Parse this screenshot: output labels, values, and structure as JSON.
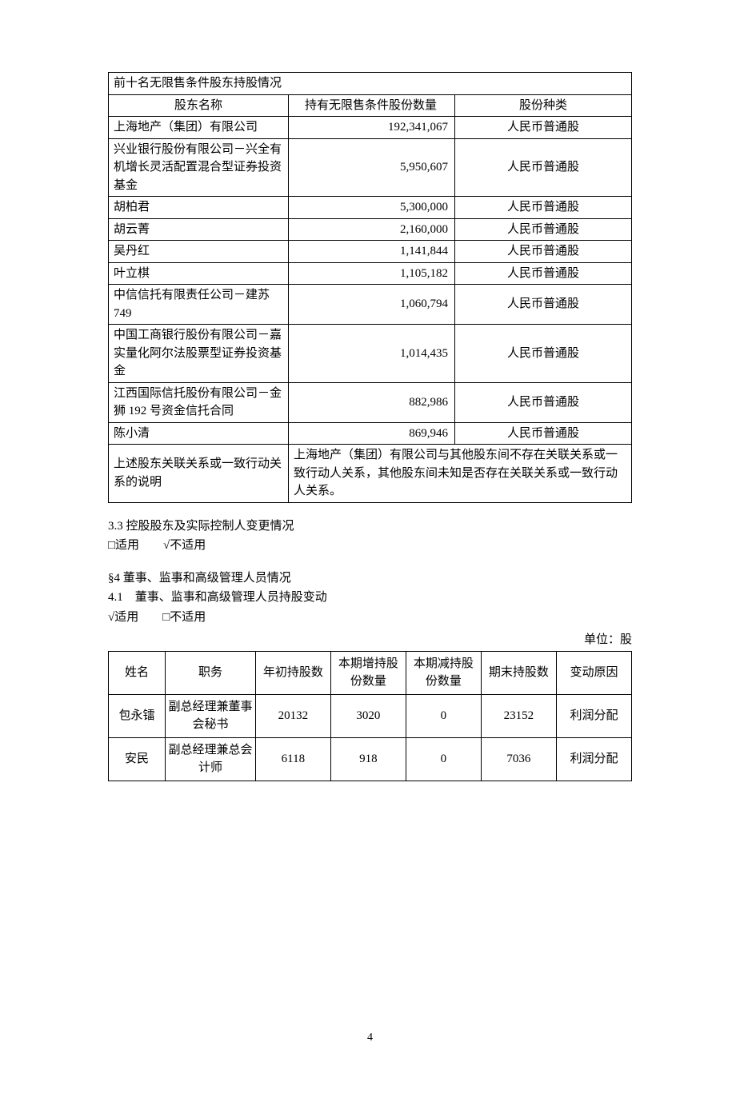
{
  "table1": {
    "title": "前十名无限售条件股东持股情况",
    "headers": [
      "股东名称",
      "持有无限售条件股份数量",
      "股份种类"
    ],
    "rows": [
      {
        "name": "上海地产（集团）有限公司",
        "qty": "192,341,067",
        "type": "人民币普通股"
      },
      {
        "name": "兴业银行股份有限公司－兴全有机增长灵活配置混合型证券投资基金",
        "qty": "5,950,607",
        "type": "人民币普通股"
      },
      {
        "name": "胡柏君",
        "qty": "5,300,000",
        "type": "人民币普通股"
      },
      {
        "name": "胡云菁",
        "qty": "2,160,000",
        "type": "人民币普通股"
      },
      {
        "name": "吴丹红",
        "qty": "1,141,844",
        "type": "人民币普通股"
      },
      {
        "name": "叶立棋",
        "qty": "1,105,182",
        "type": "人民币普通股"
      },
      {
        "name": "中信信托有限责任公司－建苏749",
        "qty": "1,060,794",
        "type": "人民币普通股"
      },
      {
        "name": "中国工商银行股份有限公司－嘉实量化阿尔法股票型证券投资基金",
        "qty": "1,014,435",
        "type": "人民币普通股"
      },
      {
        "name": "江西国际信托股份有限公司－金狮 192 号资金信托合同",
        "qty": "882,986",
        "type": "人民币普通股"
      },
      {
        "name": "陈小清",
        "qty": "869,946",
        "type": "人民币普通股"
      }
    ],
    "footnote_label": "上述股东关联关系或一致行动关系的说明",
    "footnote_text": "上海地产（集团）有限公司与其他股东间不存在关联关系或一致行动人关系，其他股东间未知是否存在关联关系或一致行动人关系。"
  },
  "section33": {
    "heading": "3.3 控股股东及实际控制人变更情况",
    "options": "□适用　　√不适用"
  },
  "section4": {
    "heading": "§4 董事、监事和高级管理人员情况",
    "sub41": "4.1　董事、监事和高级管理人员持股变动",
    "options": "√适用　　□不适用",
    "unit": "单位：股"
  },
  "table2": {
    "headers": [
      "姓名",
      "职务",
      "年初持股数",
      "本期增持股份数量",
      "本期减持股份数量",
      "期末持股数",
      "变动原因"
    ],
    "rows": [
      {
        "c1": "包永镭",
        "c2": "副总经理兼董事会秘书",
        "c3": "20132",
        "c4": "3020",
        "c5": "0",
        "c6": "23152",
        "c7": "利润分配"
      },
      {
        "c1": "安民",
        "c2": "副总经理兼总会计师",
        "c3": "6118",
        "c4": "918",
        "c5": "0",
        "c6": "7036",
        "c7": "利润分配"
      }
    ]
  },
  "page_number": "4"
}
